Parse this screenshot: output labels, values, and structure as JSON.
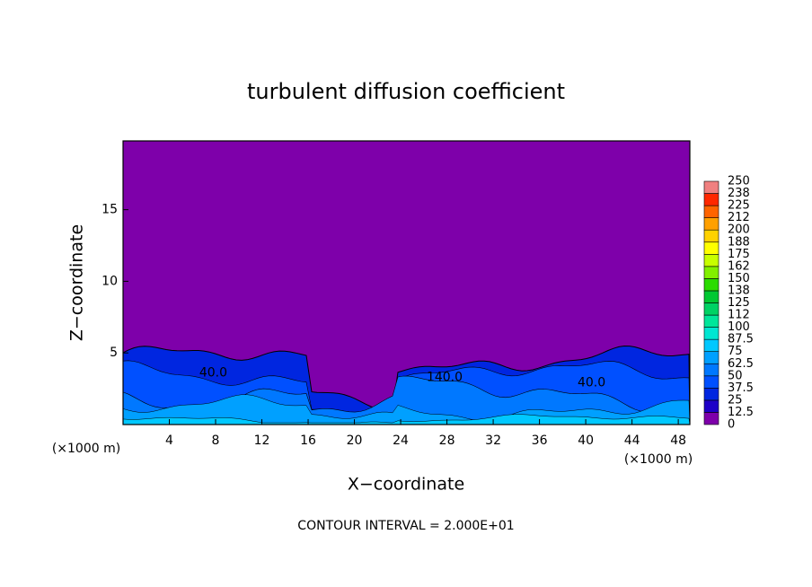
{
  "chart_data": {
    "type": "contour",
    "title": "turbulent diffusion coefficient",
    "x_label": "X−coordinate",
    "y_label": "Z−coordinate",
    "x_unit": "(×1000 m)",
    "x_unit_right": "(×1000 m)",
    "footer": "CONTOUR INTERVAL = 2.000E+01",
    "xlim": [
      0,
      49
    ],
    "xticks": [
      4,
      8,
      12,
      16,
      20,
      24,
      28,
      32,
      36,
      40,
      44,
      48
    ],
    "ylim": [
      0,
      19.8
    ],
    "yticks": [
      5,
      10,
      15
    ],
    "background_color": "#7e00aa",
    "colorbar": {
      "levels": [
        0,
        12.5,
        25,
        37.5,
        50,
        62.5,
        75,
        87.5,
        100,
        112,
        125,
        138,
        150,
        162,
        175,
        188,
        200,
        212,
        225,
        238,
        250
      ],
      "colors": [
        "#7e00aa",
        "#1e00c8",
        "#0026e0",
        "#0050ff",
        "#0078ff",
        "#00a0ff",
        "#00c8ff",
        "#00e6d2",
        "#00e69a",
        "#00d264",
        "#00c832",
        "#2adc00",
        "#82f000",
        "#c8ff00",
        "#ffff00",
        "#ffd200",
        "#ffa000",
        "#ff6400",
        "#ff2800",
        "#f08080"
      ]
    },
    "annotations": [
      {
        "text": "40.0",
        "x": 7.8,
        "y": 3.6
      },
      {
        "text": "140.0",
        "x": 27.8,
        "y": 3.3
      },
      {
        "text": "40.0",
        "x": 40.5,
        "y": 2.9
      }
    ]
  }
}
